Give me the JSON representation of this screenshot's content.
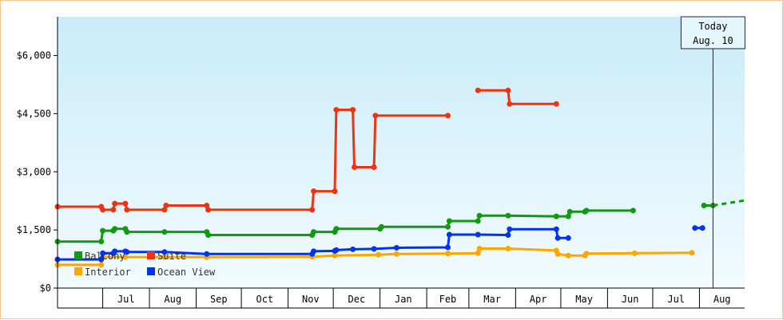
{
  "chart_data": {
    "type": "line",
    "title": "",
    "xlabel": "",
    "ylabel": "",
    "y_ticks": [
      "$0",
      "$1,500",
      "$3,000",
      "$4,500",
      "$6,000"
    ],
    "y_tick_values": [
      0,
      1500,
      3000,
      4500,
      6000
    ],
    "ylim": [
      0,
      7000
    ],
    "x_range": [
      "2021-06-01",
      "2022-08-31"
    ],
    "x_tick_labels": [
      "Jul",
      "Aug",
      "Sep",
      "Oct",
      "Nov",
      "Dec",
      "Jan",
      "Feb",
      "Mar",
      "Apr",
      "May",
      "Jun",
      "Jul",
      "Aug"
    ],
    "x_tick_dates": [
      "2021-07-01",
      "2021-08-01",
      "2021-09-01",
      "2021-10-01",
      "2021-11-01",
      "2021-12-01",
      "2022-01-01",
      "2022-02-01",
      "2022-03-01",
      "2022-04-01",
      "2022-05-01",
      "2022-06-01",
      "2022-07-01",
      "2022-08-01"
    ],
    "grid": false,
    "legend_placement": "bottom-left inside plot",
    "today_marker": {
      "line1": "Today",
      "line2": "Aug. 10",
      "date": "2022-08-10"
    },
    "series": [
      {
        "name": "Balcony",
        "color": "#119911",
        "points": [
          [
            "2021-06-01",
            1200
          ],
          [
            "2021-06-30",
            1200
          ],
          [
            "2021-07-01",
            1480
          ],
          [
            "2021-07-08",
            1480
          ],
          [
            "2021-07-09",
            1530
          ],
          [
            "2021-07-16",
            1530
          ],
          [
            "2021-07-17",
            1450
          ],
          [
            "2021-08-11",
            1450
          ],
          [
            "2021-09-08",
            1450
          ],
          [
            "2021-09-09",
            1370
          ],
          [
            "2021-11-17",
            1370
          ],
          [
            "2021-11-18",
            1450
          ],
          [
            "2021-12-02",
            1450
          ],
          [
            "2021-12-03",
            1530
          ],
          [
            "2022-01-01",
            1530
          ],
          [
            "2022-01-02",
            1580
          ],
          [
            "2022-02-15",
            1580
          ],
          [
            "2022-02-16",
            1730
          ],
          [
            "2022-03-07",
            1730
          ],
          [
            "2022-03-08",
            1870
          ],
          [
            "2022-03-27",
            1870
          ],
          [
            "2022-04-28",
            1850
          ],
          [
            "2022-05-06",
            1850
          ],
          [
            "2022-05-07",
            1970
          ],
          [
            "2022-05-17",
            1970
          ],
          [
            "2022-05-18",
            2000
          ],
          [
            "2022-06-18",
            2000
          ]
        ],
        "later": [
          [
            "2022-08-04",
            2130
          ],
          [
            "2022-08-10",
            2130
          ]
        ],
        "projection": [
          [
            "2022-08-10",
            2130
          ],
          [
            "2022-08-31",
            2260
          ]
        ]
      },
      {
        "name": "Suite",
        "color": "#ee3311",
        "points": [
          [
            "2021-06-01",
            2100
          ],
          [
            "2021-06-30",
            2100
          ],
          [
            "2021-07-01",
            2020
          ],
          [
            "2021-07-08",
            2020
          ],
          [
            "2021-07-09",
            2180
          ],
          [
            "2021-07-16",
            2180
          ],
          [
            "2021-07-17",
            2020
          ],
          [
            "2021-08-11",
            2020
          ],
          [
            "2021-08-12",
            2130
          ],
          [
            "2021-09-08",
            2130
          ],
          [
            "2021-09-09",
            2020
          ],
          [
            "2021-11-17",
            2020
          ],
          [
            "2021-11-18",
            2500
          ],
          [
            "2021-12-02",
            2500
          ],
          [
            "2021-12-03",
            4600
          ],
          [
            "2021-12-14",
            4600
          ],
          [
            "2021-12-15",
            3120
          ],
          [
            "2021-12-28",
            3120
          ],
          [
            "2021-12-29",
            4450
          ],
          [
            "2022-02-15",
            4450
          ]
        ],
        "later": [
          [
            "2022-03-07",
            5100
          ],
          [
            "2022-03-27",
            5100
          ],
          [
            "2022-03-28",
            4750
          ],
          [
            "2022-04-28",
            4750
          ]
        ]
      },
      {
        "name": "Interior",
        "color": "#ffa500",
        "points": [
          [
            "2021-06-01",
            600
          ],
          [
            "2021-06-30",
            600
          ],
          [
            "2021-07-01",
            800
          ],
          [
            "2021-07-16",
            800
          ],
          [
            "2021-08-11",
            800
          ],
          [
            "2021-09-08",
            800
          ],
          [
            "2021-11-17",
            810
          ],
          [
            "2021-12-02",
            840
          ],
          [
            "2021-12-31",
            860
          ],
          [
            "2022-01-12",
            880
          ],
          [
            "2022-02-15",
            890
          ],
          [
            "2022-03-07",
            900
          ],
          [
            "2022-03-08",
            1020
          ],
          [
            "2022-03-27",
            1020
          ],
          [
            "2022-04-28",
            970
          ],
          [
            "2022-04-29",
            880
          ],
          [
            "2022-05-06",
            840
          ],
          [
            "2022-05-17",
            840
          ],
          [
            "2022-05-18",
            890
          ],
          [
            "2022-06-19",
            900
          ],
          [
            "2022-07-27",
            910
          ]
        ]
      },
      {
        "name": "Ocean View",
        "color": "#0033ee",
        "points": [
          [
            "2021-06-01",
            740
          ],
          [
            "2021-06-30",
            740
          ],
          [
            "2021-07-01",
            900
          ],
          [
            "2021-07-08",
            900
          ],
          [
            "2021-07-09",
            950
          ],
          [
            "2021-07-16",
            950
          ],
          [
            "2021-07-17",
            930
          ],
          [
            "2021-08-11",
            930
          ],
          [
            "2021-09-08",
            880
          ],
          [
            "2021-11-17",
            880
          ],
          [
            "2021-11-18",
            950
          ],
          [
            "2021-12-02",
            960
          ],
          [
            "2021-12-03",
            980
          ],
          [
            "2021-12-14",
            1000
          ],
          [
            "2021-12-28",
            1010
          ],
          [
            "2022-01-12",
            1040
          ],
          [
            "2022-02-15",
            1050
          ],
          [
            "2022-02-16",
            1380
          ],
          [
            "2022-03-07",
            1380
          ],
          [
            "2022-03-27",
            1370
          ],
          [
            "2022-03-28",
            1520
          ],
          [
            "2022-04-28",
            1520
          ],
          [
            "2022-04-29",
            1290
          ],
          [
            "2022-05-06",
            1290
          ]
        ],
        "later": [
          [
            "2022-07-29",
            1550
          ],
          [
            "2022-08-03",
            1550
          ]
        ]
      }
    ]
  }
}
